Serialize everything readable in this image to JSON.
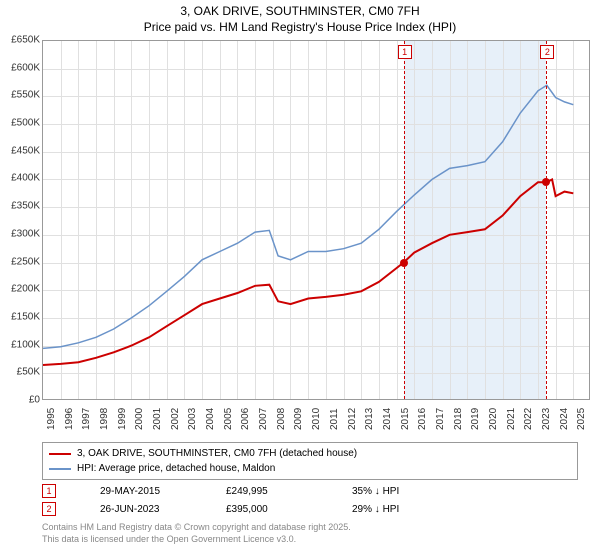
{
  "title": {
    "line1": "3, OAK DRIVE, SOUTHMINSTER, CM0 7FH",
    "line2": "Price paid vs. HM Land Registry's House Price Index (HPI)"
  },
  "chart": {
    "type": "line",
    "background_color": "#ffffff",
    "grid_color": "#e0e0e0",
    "border_color": "#999999",
    "x": {
      "min": 1995,
      "max": 2026,
      "ticks": [
        1995,
        1996,
        1997,
        1998,
        1999,
        2000,
        2001,
        2002,
        2003,
        2004,
        2005,
        2006,
        2007,
        2008,
        2009,
        2010,
        2011,
        2012,
        2013,
        2014,
        2015,
        2016,
        2017,
        2018,
        2019,
        2020,
        2021,
        2022,
        2023,
        2024,
        2025
      ],
      "label_fontsize": 10
    },
    "y": {
      "min": 0,
      "max": 650000,
      "ticks": [
        0,
        50000,
        100000,
        150000,
        200000,
        250000,
        300000,
        350000,
        400000,
        450000,
        500000,
        550000,
        600000,
        650000
      ],
      "tick_labels": [
        "£0",
        "£50K",
        "£100K",
        "£150K",
        "£200K",
        "£250K",
        "£300K",
        "£350K",
        "£400K",
        "£450K",
        "£500K",
        "£550K",
        "£600K",
        "£650K"
      ],
      "label_fontsize": 10
    },
    "shade": {
      "from": 2015.4,
      "to": 2023.48,
      "color": "rgba(120,170,220,0.18)"
    },
    "series": [
      {
        "name": "price_paid",
        "color": "#cc0000",
        "width": 2,
        "points": [
          [
            1995,
            65000
          ],
          [
            1996,
            67000
          ],
          [
            1997,
            70000
          ],
          [
            1998,
            78000
          ],
          [
            1999,
            88000
          ],
          [
            2000,
            100000
          ],
          [
            2001,
            115000
          ],
          [
            2002,
            135000
          ],
          [
            2003,
            155000
          ],
          [
            2004,
            175000
          ],
          [
            2005,
            185000
          ],
          [
            2006,
            195000
          ],
          [
            2007,
            208000
          ],
          [
            2007.8,
            210000
          ],
          [
            2008.3,
            180000
          ],
          [
            2009,
            175000
          ],
          [
            2010,
            185000
          ],
          [
            2011,
            188000
          ],
          [
            2012,
            192000
          ],
          [
            2013,
            198000
          ],
          [
            2014,
            215000
          ],
          [
            2015,
            240000
          ],
          [
            2015.4,
            249995
          ],
          [
            2016,
            268000
          ],
          [
            2017,
            285000
          ],
          [
            2018,
            300000
          ],
          [
            2019,
            305000
          ],
          [
            2020,
            310000
          ],
          [
            2021,
            335000
          ],
          [
            2022,
            370000
          ],
          [
            2023,
            395000
          ],
          [
            2023.48,
            395000
          ],
          [
            2023.8,
            400000
          ],
          [
            2024,
            370000
          ],
          [
            2024.5,
            378000
          ],
          [
            2025,
            375000
          ]
        ]
      },
      {
        "name": "hpi",
        "color": "#6a93c9",
        "width": 1.5,
        "points": [
          [
            1995,
            95000
          ],
          [
            1996,
            98000
          ],
          [
            1997,
            105000
          ],
          [
            1998,
            115000
          ],
          [
            1999,
            130000
          ],
          [
            2000,
            150000
          ],
          [
            2001,
            172000
          ],
          [
            2002,
            198000
          ],
          [
            2003,
            225000
          ],
          [
            2004,
            255000
          ],
          [
            2005,
            270000
          ],
          [
            2006,
            285000
          ],
          [
            2007,
            305000
          ],
          [
            2007.8,
            308000
          ],
          [
            2008.3,
            262000
          ],
          [
            2009,
            255000
          ],
          [
            2010,
            270000
          ],
          [
            2011,
            270000
          ],
          [
            2012,
            275000
          ],
          [
            2013,
            285000
          ],
          [
            2014,
            310000
          ],
          [
            2015,
            342000
          ],
          [
            2016,
            372000
          ],
          [
            2017,
            400000
          ],
          [
            2018,
            420000
          ],
          [
            2019,
            425000
          ],
          [
            2020,
            432000
          ],
          [
            2021,
            468000
          ],
          [
            2022,
            520000
          ],
          [
            2023,
            560000
          ],
          [
            2023.5,
            570000
          ],
          [
            2024,
            548000
          ],
          [
            2024.5,
            540000
          ],
          [
            2025,
            535000
          ]
        ]
      }
    ],
    "markers": [
      {
        "id": "1",
        "x": 2015.4,
        "y": 249995
      },
      {
        "id": "2",
        "x": 2023.48,
        "y": 395000
      }
    ]
  },
  "legend": {
    "series1": "3, OAK DRIVE, SOUTHMINSTER, CM0 7FH (detached house)",
    "series2": "HPI: Average price, detached house, Maldon"
  },
  "sales": [
    {
      "id": "1",
      "date": "29-MAY-2015",
      "price": "£249,995",
      "delta": "35% ↓ HPI"
    },
    {
      "id": "2",
      "date": "26-JUN-2023",
      "price": "£395,000",
      "delta": "29% ↓ HPI"
    }
  ],
  "credit": {
    "l1": "Contains HM Land Registry data © Crown copyright and database right 2025.",
    "l2": "This data is licensed under the Open Government Licence v3.0."
  }
}
